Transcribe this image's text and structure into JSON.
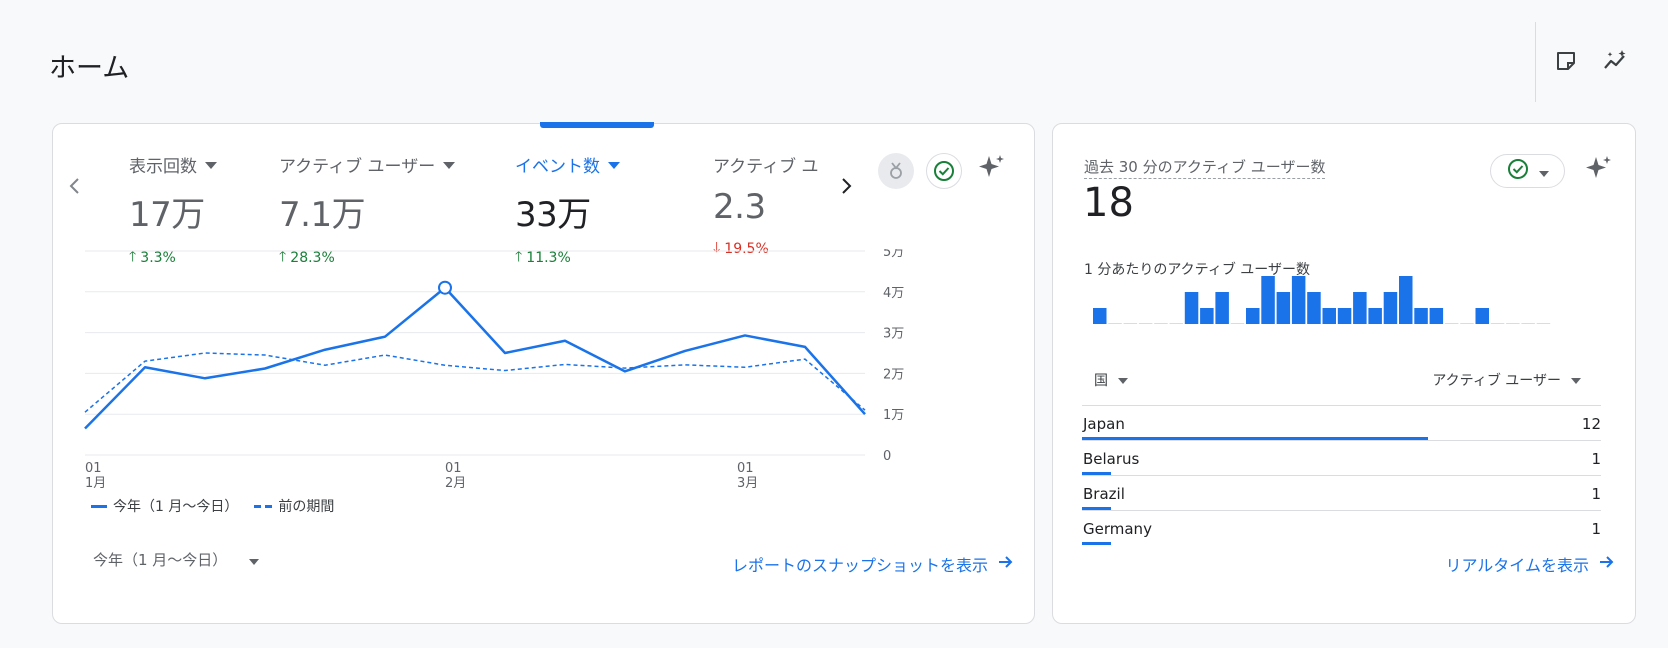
{
  "page": {
    "title": "ホーム"
  },
  "toolbar": {
    "icons": [
      "note-icon",
      "insights-icon"
    ]
  },
  "overview": {
    "metrics": [
      {
        "label": "表示回数",
        "value": "17万",
        "delta": "3.3%",
        "trend": "up"
      },
      {
        "label": "アクティブ ユーザー",
        "value": "7.1万",
        "delta": "28.3%",
        "trend": "up"
      },
      {
        "label": "イベント数",
        "value": "33万",
        "delta": "11.3%",
        "trend": "up",
        "active": true
      },
      {
        "label": "アクティブ ユ",
        "value": "2.3",
        "delta": "19.5%",
        "trend": "down"
      }
    ],
    "date_range": "今年（1 月〜今日）",
    "snapshot_link": "レポートのスナップショットを表示",
    "legend": {
      "current": "今年（1 月〜今日）",
      "previous": "前の期間"
    }
  },
  "chart_data": {
    "type": "line",
    "y_ticks": [
      "5万",
      "4万",
      "3万",
      "2万",
      "1万",
      "0"
    ],
    "ylim": [
      0,
      50000
    ],
    "x_tick_labels": [
      {
        "day": "01",
        "month": "1月"
      },
      {
        "day": "01",
        "month": "2月"
      },
      {
        "day": "01",
        "month": "3月"
      }
    ],
    "series": [
      {
        "name": "今年（1 月〜今日）",
        "style": "solid",
        "values": [
          6500,
          21500,
          18800,
          21200,
          25800,
          29000,
          41000,
          25000,
          28000,
          20500,
          25500,
          29300,
          26500,
          10000
        ]
      },
      {
        "name": "前の期間",
        "style": "dashed",
        "values": [
          10500,
          23000,
          25000,
          24500,
          22000,
          24500,
          22000,
          20700,
          22200,
          21300,
          22100,
          21500,
          23500,
          11000
        ]
      }
    ],
    "highlight_index": 6,
    "grid": true
  },
  "realtime": {
    "title": "過去 30 分のアクティブ ユーザー数",
    "value": "18",
    "subtitle": "1 分あたりのアクティブ ユーザー数",
    "per_minute": [
      1,
      0,
      0,
      0,
      0,
      0,
      2,
      1,
      2,
      0,
      1,
      3,
      2,
      3,
      2,
      1,
      1,
      2,
      1,
      2,
      3,
      1,
      1,
      0,
      0,
      1,
      0,
      0,
      0,
      0
    ],
    "column_country": "国",
    "column_users": "アクティブ ユーザー",
    "rows": [
      {
        "country": "Japan",
        "users": "12",
        "share": 0.667
      },
      {
        "country": "Belarus",
        "users": "1",
        "share": 0.056
      },
      {
        "country": "Brazil",
        "users": "1",
        "share": 0.056
      },
      {
        "country": "Germany",
        "users": "1",
        "share": 0.056
      }
    ],
    "link": "リアルタイムを表示"
  },
  "colors": {
    "accent": "#1a73e8",
    "up": "#188038",
    "down": "#d93025",
    "success": "#188038"
  }
}
